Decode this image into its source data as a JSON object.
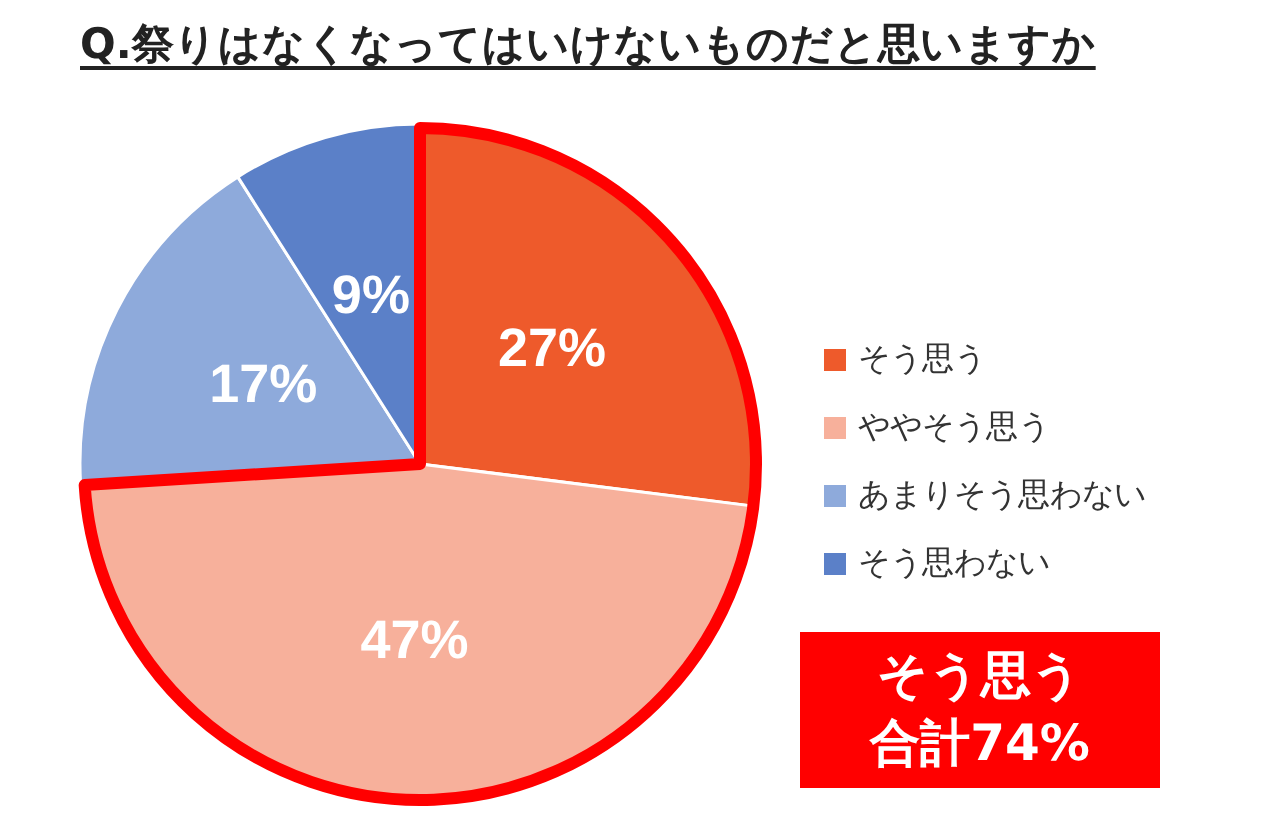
{
  "chart_data": {
    "type": "pie",
    "title": "Q.祭りはなくなってはいけないものだと思いますか",
    "categories": [
      "そう思う",
      "ややそう思う",
      "あまりそう思わない",
      "そう思わない"
    ],
    "values": [
      27,
      47,
      17,
      9
    ],
    "colors": [
      "#ee5a2b",
      "#f7b09b",
      "#8eaadb",
      "#5b80c8"
    ],
    "value_labels": [
      "27%",
      "47%",
      "17%",
      "9%"
    ],
    "legend": "right",
    "annotations": [
      "そう思う",
      "合計74%"
    ]
  }
}
